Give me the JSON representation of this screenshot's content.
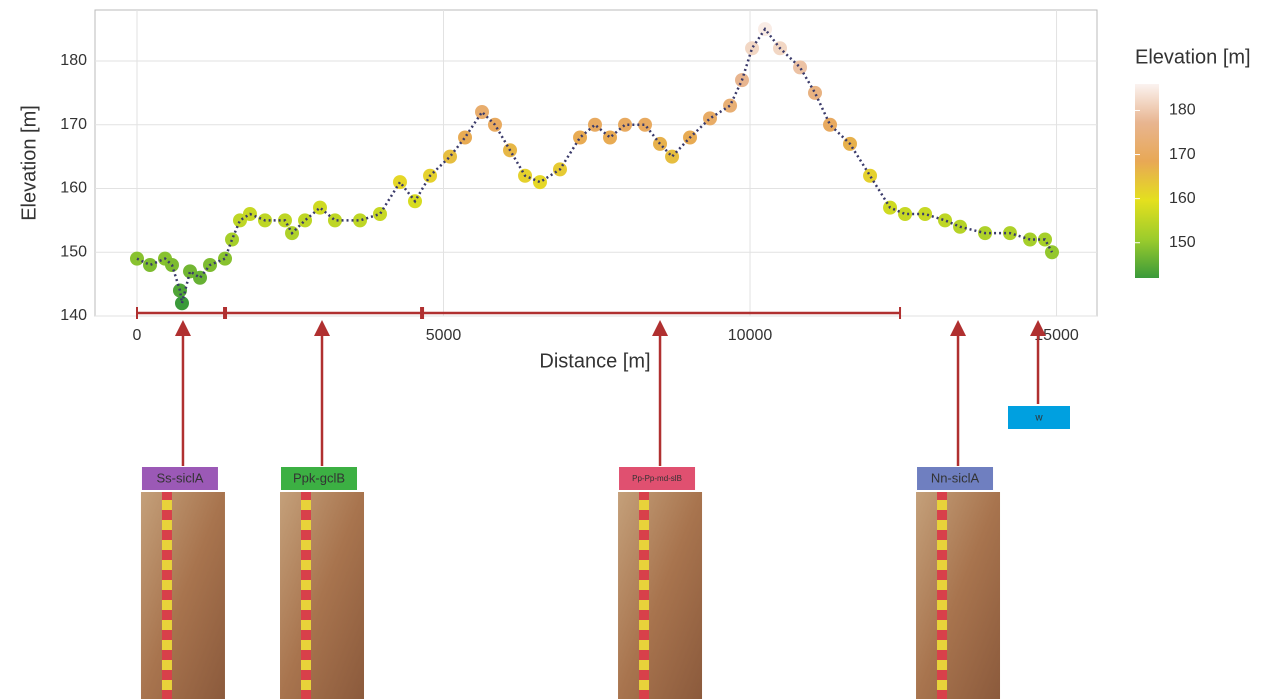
{
  "chart_data": {
    "type": "scatter",
    "xlabel": "Distance [m]",
    "ylabel": "Elevation [m]",
    "xlim": [
      -685,
      15660
    ],
    "ylim": [
      140,
      188
    ],
    "xticks": [
      0,
      5000,
      10000,
      15000
    ],
    "yticks": [
      140,
      150,
      160,
      170,
      180
    ],
    "grid": true,
    "series": [
      {
        "name": "Elevation [m]",
        "x": [
          0,
          212,
          457,
          571,
          701,
          734,
          865,
          1028,
          1191,
          1436,
          1550,
          1680,
          1843,
          2088,
          2414,
          2529,
          2741,
          2985,
          3230,
          3638,
          3964,
          4290,
          4535,
          4780,
          5106,
          5351,
          5628,
          5840,
          6085,
          6330,
          6574,
          6900,
          7227,
          7471,
          7716,
          7961,
          8287,
          8532,
          8728,
          9021,
          9347,
          9674,
          9869,
          10033,
          10245,
          10489,
          10816,
          11060,
          11305,
          11631,
          11958,
          12284,
          12529,
          12855,
          13181,
          13426,
          13834,
          14241,
          14568,
          14812,
          14926
        ],
        "values": [
          149,
          148,
          149,
          148,
          144,
          142,
          147,
          146,
          148,
          149,
          152,
          155,
          156,
          155,
          155,
          153,
          155,
          157,
          155,
          155,
          156,
          161,
          158,
          162,
          165,
          168,
          172,
          170,
          166,
          162,
          161,
          163,
          168,
          170,
          168,
          170,
          170,
          167,
          165,
          168,
          171,
          173,
          177,
          182,
          185,
          182,
          179,
          175,
          170,
          167,
          162,
          157,
          156,
          156,
          155,
          154,
          153,
          153,
          152,
          152,
          150
        ]
      }
    ],
    "line_color": "#3a3a6a",
    "colorbar": {
      "title": "Elevation [m]",
      "clim": [
        142,
        186
      ],
      "ticks": [
        150,
        160,
        170,
        180
      ],
      "colormap": [
        "#3a9a3a",
        "#9ccc2c",
        "#e4e01e",
        "#e8a855",
        "#e8b590",
        "#fbf3f0"
      ]
    },
    "segments": {
      "color": "#b03030",
      "x": [
        0,
        1436,
        4650,
        12447
      ]
    },
    "annotations": [
      {
        "label": "Ss-siclA",
        "x": 750,
        "color": "#9b59b6"
      },
      {
        "label": "Ppk-gclB",
        "x": 3018,
        "color": "#3cb043"
      },
      {
        "label": "Pp-Pp-md-slB",
        "x": 8532,
        "color": "#e05070"
      },
      {
        "label": "Nn-siclA",
        "x": 13393,
        "color": "#6f7fc0"
      },
      {
        "label": "w",
        "x": 14698,
        "color": "#00a0e0"
      }
    ],
    "arrow_color": "#b03030"
  }
}
